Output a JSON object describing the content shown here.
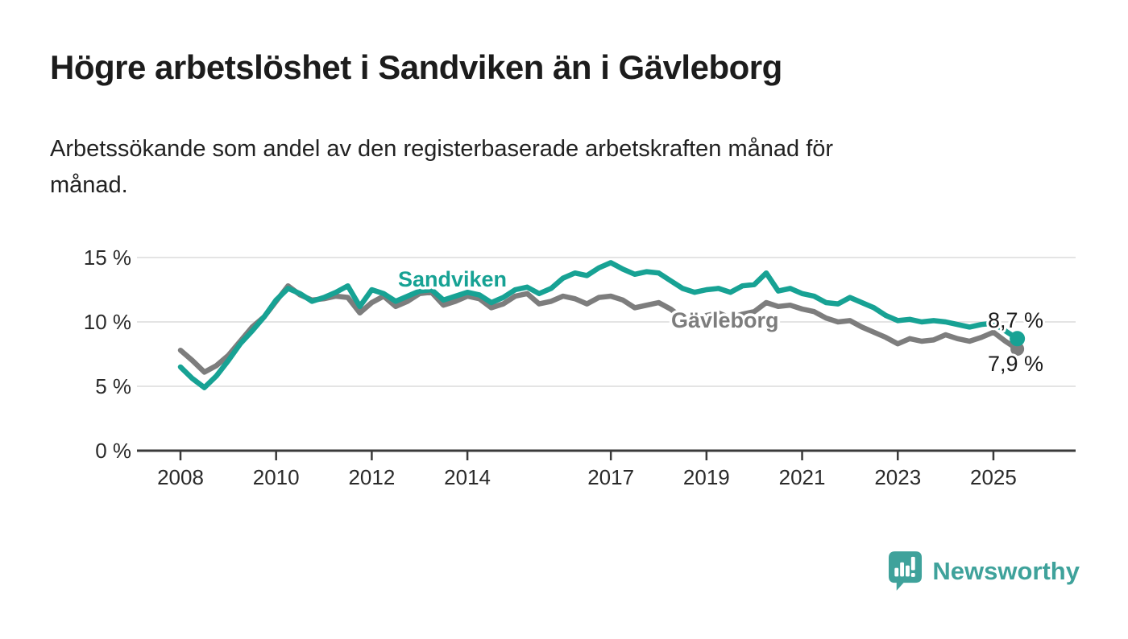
{
  "header": {
    "title": "Högre arbetslöshet i Sandviken än i Gävleborg",
    "subtitle": "Arbetssökande som andel av den registerbaserade arbetskraften månad för\nmånad."
  },
  "chart_data": {
    "type": "line",
    "title": "Högre arbetslöshet i Sandviken än i Gävleborg",
    "subtitle": "Arbetssökande som andel av den registerbaserade arbetskraften månad för månad.",
    "xlabel": "",
    "ylabel": "",
    "grid": true,
    "legend": "inline-labels",
    "ylim": [
      0,
      15.5
    ],
    "xlim": [
      2007.1,
      2026.7
    ],
    "ytick_values": [
      0,
      5,
      10,
      15
    ],
    "ytick_labels": [
      "0 %",
      "5 %",
      "10 %",
      "15 %"
    ],
    "xtick_values": [
      2008,
      2010,
      2012,
      2014,
      2017,
      2019,
      2021,
      2023,
      2025
    ],
    "xtick_labels": [
      "2008",
      "2010",
      "2012",
      "2014",
      "2017",
      "2019",
      "2021",
      "2023",
      "2025"
    ],
    "x": [
      2008,
      2008.25,
      2008.5,
      2008.75,
      2009,
      2009.25,
      2009.5,
      2009.75,
      2010,
      2010.25,
      2010.5,
      2010.75,
      2011,
      2011.25,
      2011.5,
      2011.75,
      2012,
      2012.25,
      2012.5,
      2012.75,
      2013,
      2013.25,
      2013.5,
      2013.75,
      2014,
      2014.25,
      2014.5,
      2014.75,
      2015,
      2015.25,
      2015.5,
      2015.75,
      2016,
      2016.25,
      2016.5,
      2016.75,
      2017,
      2017.25,
      2017.5,
      2017.75,
      2018,
      2018.25,
      2018.5,
      2018.75,
      2019,
      2019.25,
      2019.5,
      2019.75,
      2020,
      2020.25,
      2020.5,
      2020.75,
      2021,
      2021.25,
      2021.5,
      2021.75,
      2022,
      2022.25,
      2022.5,
      2022.75,
      2023,
      2023.25,
      2023.5,
      2023.75,
      2024,
      2024.25,
      2024.5,
      2024.75,
      2025,
      2025.25,
      2025.5
    ],
    "series": [
      {
        "name": "Gävleborg",
        "color": "#7d7d7d",
        "end_label": "7,9 %",
        "end_value": 7.9,
        "values": [
          7.8,
          7.0,
          6.1,
          6.6,
          7.4,
          8.5,
          9.6,
          10.4,
          11.6,
          12.8,
          12.1,
          11.7,
          11.8,
          12.0,
          11.9,
          10.7,
          11.5,
          12.0,
          11.2,
          11.6,
          12.2,
          12.3,
          11.3,
          11.6,
          12.0,
          11.8,
          11.1,
          11.4,
          12.0,
          12.2,
          11.4,
          11.6,
          12.0,
          11.8,
          11.4,
          11.9,
          12.0,
          11.7,
          11.1,
          11.3,
          11.5,
          11.0,
          10.3,
          9.9,
          10.5,
          10.7,
          10.3,
          10.6,
          10.8,
          11.5,
          11.2,
          11.3,
          11.0,
          10.8,
          10.3,
          10.0,
          10.1,
          9.6,
          9.2,
          8.8,
          8.3,
          8.7,
          8.5,
          8.6,
          9.0,
          8.7,
          8.5,
          8.8,
          9.2,
          8.5,
          7.9
        ]
      },
      {
        "name": "Sandviken",
        "color": "#17a294",
        "end_label": "8,7 %",
        "end_value": 8.7,
        "values": [
          6.5,
          5.6,
          4.9,
          5.8,
          7.0,
          8.3,
          9.3,
          10.4,
          11.7,
          12.6,
          12.2,
          11.6,
          11.9,
          12.3,
          12.8,
          11.2,
          12.5,
          12.2,
          11.6,
          12.0,
          12.4,
          12.5,
          11.7,
          12.0,
          12.3,
          12.1,
          11.5,
          11.9,
          12.5,
          12.7,
          12.2,
          12.6,
          13.4,
          13.8,
          13.6,
          14.2,
          14.6,
          14.1,
          13.7,
          13.9,
          13.8,
          13.2,
          12.6,
          12.3,
          12.5,
          12.6,
          12.3,
          12.8,
          12.9,
          13.8,
          12.4,
          12.6,
          12.2,
          12.0,
          11.5,
          11.4,
          11.9,
          11.5,
          11.1,
          10.5,
          10.1,
          10.2,
          10.0,
          10.1,
          10.0,
          9.8,
          9.6,
          9.8,
          9.9,
          9.3,
          8.7
        ]
      }
    ]
  },
  "footer": {
    "brand": "Newsworthy",
    "logo_icon": "bar-chart-speech-bubble-icon"
  },
  "colors": {
    "sandviken_line": "#17a294",
    "gavleborg_line": "#7d7d7d",
    "brand_teal": "#3fa29b",
    "axis": "#3a3a3a",
    "gridline": "#dcdcdc",
    "text_dark": "#1c1c1c"
  }
}
